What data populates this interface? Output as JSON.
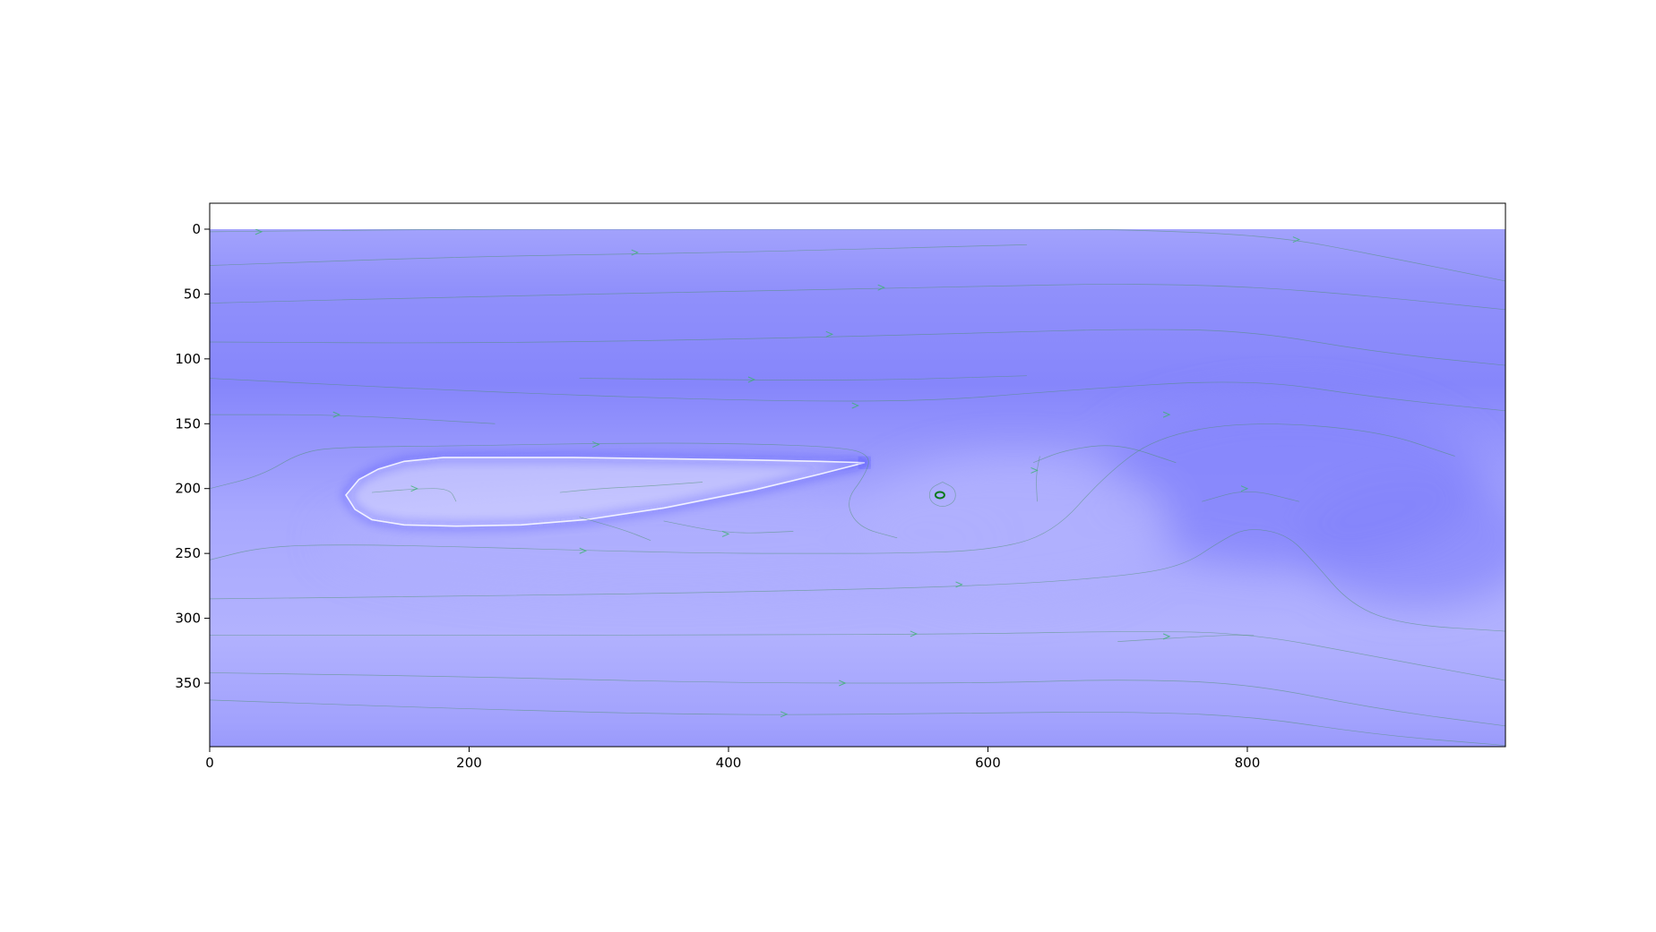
{
  "colors": {
    "field_dark": "#8585fb",
    "field_mid": "#9a9afc",
    "field_light": "#b0b0fe",
    "edge": "#1a1aff",
    "streamline": "#4a8f6a",
    "arrow": "#3cb371",
    "wake_pale": "#d9d9ff",
    "axis": "#000000"
  },
  "chart_data": {
    "type": "heatmap",
    "subtype": "flow field with streamlines around an airfoil",
    "title": "",
    "xlabel": "",
    "ylabel": "",
    "xlim": [
      0,
      999
    ],
    "ylim": [
      399,
      -20
    ],
    "y_inverted": true,
    "xticks": [
      0,
      200,
      400,
      600,
      800
    ],
    "yticks": [
      0,
      50,
      100,
      150,
      200,
      250,
      300,
      350
    ],
    "grid": false,
    "legend": "none",
    "field_extent": {
      "x": [
        0,
        999
      ],
      "y": [
        0,
        399
      ]
    },
    "airfoil": {
      "leading_edge": [
        105,
        205
      ],
      "trailing_edge": [
        505,
        180
      ],
      "upper": [
        [
          105,
          205
        ],
        [
          115,
          193
        ],
        [
          130,
          185
        ],
        [
          150,
          179
        ],
        [
          180,
          176
        ],
        [
          220,
          176
        ],
        [
          280,
          176
        ],
        [
          350,
          177
        ],
        [
          420,
          178
        ],
        [
          470,
          179
        ],
        [
          505,
          180
        ]
      ],
      "lower": [
        [
          105,
          205
        ],
        [
          112,
          216
        ],
        [
          125,
          224
        ],
        [
          150,
          228
        ],
        [
          190,
          229
        ],
        [
          240,
          228
        ],
        [
          290,
          224
        ],
        [
          350,
          215
        ],
        [
          420,
          201
        ],
        [
          470,
          189
        ],
        [
          505,
          180
        ]
      ]
    },
    "vortex_center": [
      563,
      205
    ],
    "streamlines": [
      {
        "points": [
          [
            0,
            2
          ],
          [
            200,
            0
          ],
          [
            400,
            0
          ],
          [
            600,
            0
          ],
          [
            700,
            0
          ],
          [
            820,
            5
          ],
          [
            900,
            20
          ],
          [
            999,
            40
          ]
        ],
        "arrows": [
          [
            40,
            2
          ],
          [
            840,
            8
          ]
        ]
      },
      {
        "points": [
          [
            0,
            28
          ],
          [
            200,
            21
          ],
          [
            400,
            18
          ],
          [
            630,
            12
          ]
        ],
        "arrows": [
          [
            330,
            18
          ]
        ]
      },
      {
        "points": [
          [
            0,
            57
          ],
          [
            200,
            52
          ],
          [
            400,
            48
          ],
          [
            600,
            44
          ],
          [
            700,
            42
          ],
          [
            800,
            44
          ],
          [
            900,
            52
          ],
          [
            999,
            62
          ]
        ],
        "arrows": [
          [
            520,
            45
          ]
        ]
      },
      {
        "points": [
          [
            0,
            87
          ],
          [
            200,
            88
          ],
          [
            400,
            85
          ],
          [
            600,
            80
          ],
          [
            700,
            77
          ],
          [
            800,
            78
          ],
          [
            900,
            95
          ],
          [
            999,
            105
          ]
        ],
        "arrows": [
          [
            480,
            81
          ]
        ]
      },
      {
        "points": [
          [
            0,
            115
          ],
          [
            200,
            125
          ],
          [
            400,
            132
          ],
          [
            550,
            133
          ],
          [
            650,
            125
          ],
          [
            800,
            115
          ],
          [
            900,
            130
          ],
          [
            999,
            140
          ]
        ],
        "arrows": [
          [
            500,
            136
          ]
        ]
      },
      {
        "points": [
          [
            285,
            115
          ],
          [
            500,
            117
          ],
          [
            630,
            113
          ]
        ],
        "arrows": [
          [
            420,
            116
          ]
        ]
      },
      {
        "points": [
          [
            0,
            143
          ],
          [
            100,
            143
          ],
          [
            220,
            150
          ]
        ],
        "arrows": [
          [
            100,
            143
          ]
        ]
      },
      {
        "points": [
          [
            0,
            200
          ],
          [
            40,
            190
          ],
          [
            70,
            172
          ],
          [
            100,
            168
          ],
          [
            200,
            167
          ],
          [
            300,
            165
          ],
          [
            400,
            165
          ],
          [
            490,
            168
          ],
          [
            510,
            175
          ],
          [
            505,
            190
          ],
          [
            490,
            210
          ],
          [
            500,
            230
          ],
          [
            530,
            238
          ]
        ],
        "arrows": [
          [
            300,
            166
          ]
        ]
      },
      {
        "points": [
          [
            0,
            255
          ],
          [
            40,
            245
          ],
          [
            100,
            243
          ],
          [
            200,
            245
          ],
          [
            300,
            248
          ],
          [
            400,
            250
          ],
          [
            480,
            250
          ],
          [
            520,
            250
          ],
          [
            600,
            248
          ],
          [
            650,
            235
          ],
          [
            690,
            190
          ],
          [
            730,
            160
          ],
          [
            800,
            148
          ],
          [
            900,
            155
          ],
          [
            960,
            175
          ]
        ],
        "arrows": [
          [
            290,
            248
          ],
          [
            740,
            143
          ]
        ]
      },
      {
        "points": [
          [
            0,
            285
          ],
          [
            200,
            283
          ],
          [
            400,
            280
          ],
          [
            600,
            275
          ],
          [
            700,
            268
          ],
          [
            750,
            260
          ],
          [
            780,
            240
          ],
          [
            800,
            230
          ],
          [
            830,
            235
          ],
          [
            850,
            255
          ],
          [
            880,
            290
          ],
          [
            920,
            305
          ],
          [
            999,
            310
          ]
        ],
        "arrows": [
          [
            580,
            274
          ]
        ]
      },
      {
        "points": [
          [
            0,
            313
          ],
          [
            200,
            313
          ],
          [
            400,
            313
          ],
          [
            600,
            312
          ],
          [
            700,
            310
          ],
          [
            800,
            311
          ],
          [
            900,
            330
          ],
          [
            999,
            348
          ]
        ],
        "arrows": [
          [
            545,
            312
          ]
        ]
      },
      {
        "points": [
          [
            0,
            342
          ],
          [
            200,
            345
          ],
          [
            400,
            350
          ],
          [
            600,
            350
          ],
          [
            700,
            347
          ],
          [
            800,
            350
          ],
          [
            900,
            370
          ],
          [
            999,
            383
          ]
        ],
        "arrows": [
          [
            490,
            350
          ]
        ]
      },
      {
        "points": [
          [
            0,
            363
          ],
          [
            200,
            370
          ],
          [
            400,
            375
          ],
          [
            600,
            373
          ],
          [
            700,
            372
          ],
          [
            800,
            375
          ],
          [
            900,
            390
          ],
          [
            999,
            398
          ]
        ],
        "arrows": [
          [
            445,
            374
          ]
        ]
      },
      {
        "points": [
          [
            125,
            203
          ],
          [
            160,
            200
          ],
          [
            185,
            200
          ],
          [
            190,
            210
          ]
        ],
        "arrows": [
          [
            160,
            200
          ]
        ]
      },
      {
        "points": [
          [
            270,
            203
          ],
          [
            300,
            200
          ],
          [
            340,
            198
          ],
          [
            380,
            195
          ]
        ],
        "arrows": []
      },
      {
        "points": [
          [
            350,
            225
          ],
          [
            400,
            235
          ],
          [
            450,
            233
          ]
        ],
        "arrows": [
          [
            400,
            235
          ]
        ]
      },
      {
        "points": [
          [
            285,
            222
          ],
          [
            320,
            232
          ],
          [
            340,
            240
          ]
        ],
        "arrows": []
      },
      {
        "points": [
          [
            635,
            180
          ],
          [
            660,
            170
          ],
          [
            700,
            165
          ],
          [
            745,
            180
          ]
        ],
        "arrows": []
      },
      {
        "points": [
          [
            765,
            210
          ],
          [
            800,
            200
          ],
          [
            840,
            210
          ]
        ],
        "arrows": [
          [
            800,
            200
          ]
        ]
      },
      {
        "points": [
          [
            700,
            318
          ],
          [
            780,
            313
          ],
          [
            805,
            313
          ]
        ],
        "arrows": [
          [
            740,
            314
          ]
        ]
      },
      {
        "points": [
          [
            638,
            210
          ],
          [
            637,
            190
          ],
          [
            640,
            175
          ]
        ],
        "arrows": [
          [
            638,
            186
          ]
        ]
      },
      {
        "points": [
          [
            565,
            195
          ],
          [
            555,
            200
          ],
          [
            555,
            210
          ],
          [
            565,
            215
          ],
          [
            575,
            210
          ],
          [
            575,
            200
          ],
          [
            565,
            195
          ]
        ],
        "arrows": []
      }
    ]
  }
}
